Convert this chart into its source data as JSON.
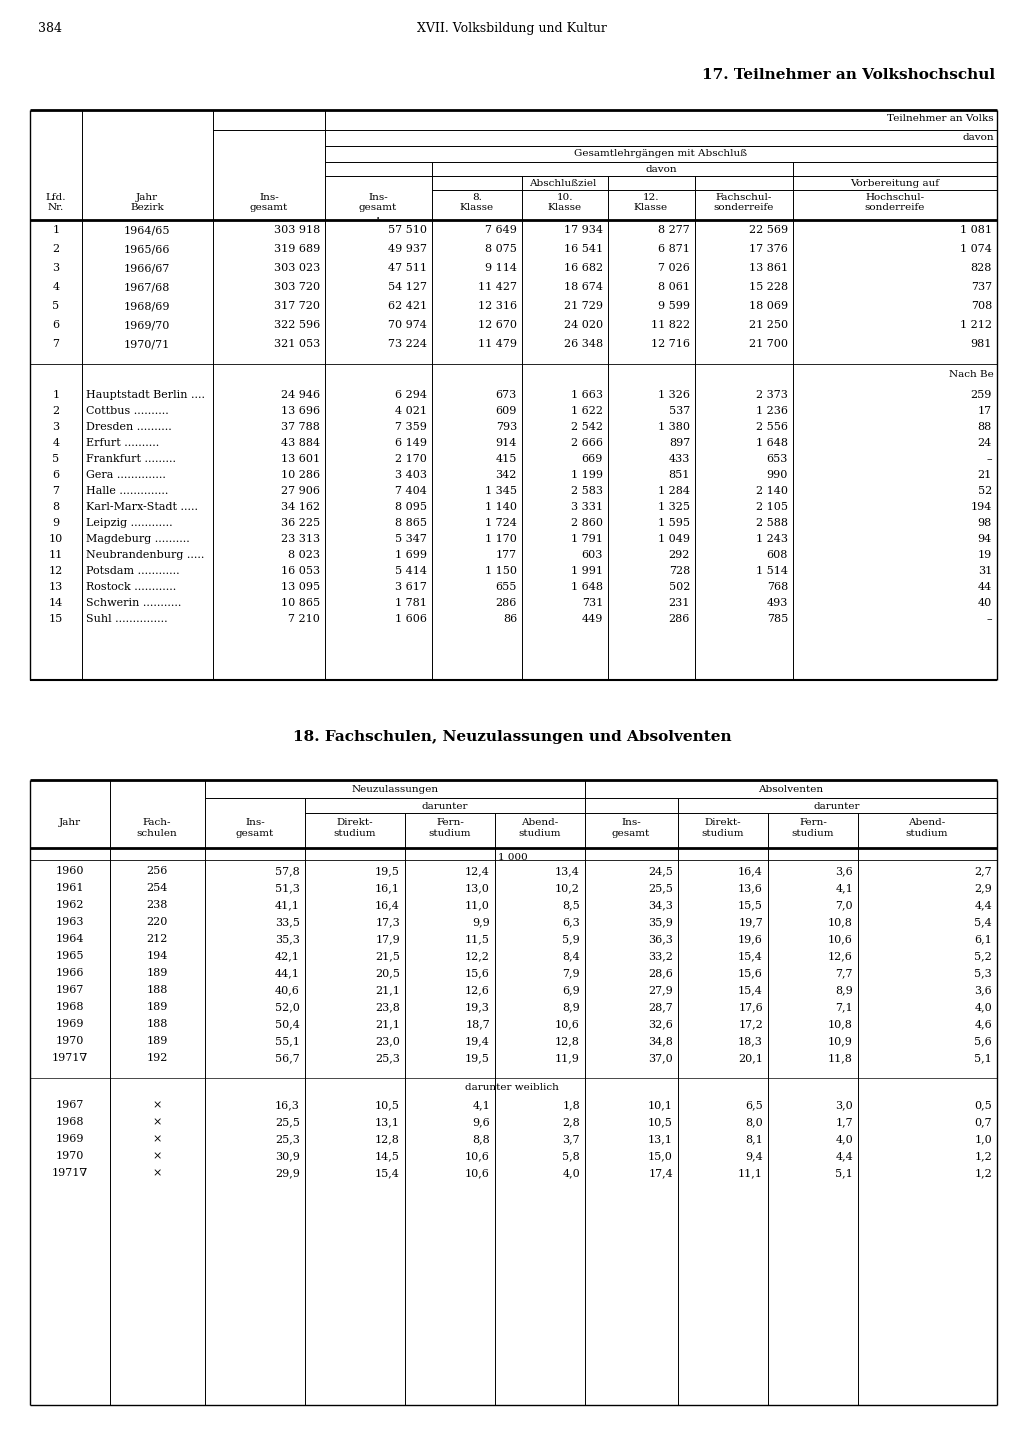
{
  "page_number": "384",
  "page_header": "XVII. Volksbildung und Kultur",
  "title1": "17. Teilnehmer an Volkshochschul",
  "title2": "18. Fachschulen, Neuzulassungen und Absolventen",
  "bg_color": "#ffffff",
  "text_color": "#000000",
  "years_data": [
    [
      "1",
      "1964/65",
      "303 918",
      "57 510",
      "7 649",
      "17 934",
      "8 277",
      "22 569",
      "1 081"
    ],
    [
      "2",
      "1965/66",
      "319 689",
      "49 937",
      "8 075",
      "16 541",
      "6 871",
      "17 376",
      "1 074"
    ],
    [
      "3",
      "1966/67",
      "303 023",
      "47 511",
      "9 114",
      "16 682",
      "7 026",
      "13 861",
      "828"
    ],
    [
      "4",
      "1967/68",
      "303 720",
      "54 127",
      "11 427",
      "18 674",
      "8 061",
      "15 228",
      "737"
    ],
    [
      "5",
      "1968/69",
      "317 720",
      "62 421",
      "12 316",
      "21 729",
      "9 599",
      "18 069",
      "708"
    ],
    [
      "6",
      "1969/70",
      "322 596",
      "70 974",
      "12 670",
      "24 020",
      "11 822",
      "21 250",
      "1 212"
    ],
    [
      "7",
      "1970/71",
      "321 053",
      "73 224",
      "11 479",
      "26 348",
      "12 716",
      "21 700",
      "981"
    ]
  ],
  "bezirke_data": [
    [
      "1",
      "Hauptstadt Berlin ....",
      "24 946",
      "6 294",
      "673",
      "1 663",
      "1 326",
      "2 373",
      "259"
    ],
    [
      "2",
      "Cottbus ..........",
      "13 696",
      "4 021",
      "609",
      "1 622",
      "537",
      "1 236",
      "17"
    ],
    [
      "3",
      "Dresden ..........",
      "37 788",
      "7 359",
      "793",
      "2 542",
      "1 380",
      "2 556",
      "88"
    ],
    [
      "4",
      "Erfurt ..........",
      "43 884",
      "6 149",
      "914",
      "2 666",
      "897",
      "1 648",
      "24"
    ],
    [
      "5",
      "Frankfurt .........",
      "13 601",
      "2 170",
      "415",
      "669",
      "433",
      "653",
      "–"
    ],
    [
      "6",
      "Gera ..............",
      "10 286",
      "3 403",
      "342",
      "1 199",
      "851",
      "990",
      "21"
    ],
    [
      "7",
      "Halle ..............",
      "27 906",
      "7 404",
      "1 345",
      "2 583",
      "1 284",
      "2 140",
      "52"
    ],
    [
      "8",
      "Karl-Marx-Stadt .....",
      "34 162",
      "8 095",
      "1 140",
      "3 331",
      "1 325",
      "2 105",
      "194"
    ],
    [
      "9",
      "Leipzig ............",
      "36 225",
      "8 865",
      "1 724",
      "2 860",
      "1 595",
      "2 588",
      "98"
    ],
    [
      "10",
      "Magdeburg ..........",
      "23 313",
      "5 347",
      "1 170",
      "1 791",
      "1 049",
      "1 243",
      "94"
    ],
    [
      "11",
      "Neubrandenburg .....",
      "8 023",
      "1 699",
      "177",
      "603",
      "292",
      "608",
      "19"
    ],
    [
      "12",
      "Potsdam ............",
      "16 053",
      "5 414",
      "1 150",
      "1 991",
      "728",
      "1 514",
      "31"
    ],
    [
      "13",
      "Rostock ............",
      "13 095",
      "3 617",
      "655",
      "1 648",
      "502",
      "768",
      "44"
    ],
    [
      "14",
      "Schwerin ...........",
      "10 865",
      "1 781",
      "286",
      "731",
      "231",
      "493",
      "40"
    ],
    [
      "15",
      "Suhl ...............",
      "7 210",
      "1 606",
      "86",
      "449",
      "286",
      "785",
      "–"
    ]
  ],
  "t2_data": [
    [
      "1960",
      "256",
      "57,8",
      "19,5",
      "12,4",
      "13,4",
      "24,5",
      "16,4",
      "3,6",
      "2,7"
    ],
    [
      "1961",
      "254",
      "51,3",
      "16,1",
      "13,0",
      "10,2",
      "25,5",
      "13,6",
      "4,1",
      "2,9"
    ],
    [
      "1962",
      "238",
      "41,1",
      "16,4",
      "11,0",
      "8,5",
      "34,3",
      "15,5",
      "7,0",
      "4,4"
    ],
    [
      "1963",
      "220",
      "33,5",
      "17,3",
      "9,9",
      "6,3",
      "35,9",
      "19,7",
      "10,8",
      "5,4"
    ],
    [
      "1964",
      "212",
      "35,3",
      "17,9",
      "11,5",
      "5,9",
      "36,3",
      "19,6",
      "10,6",
      "6,1"
    ],
    [
      "1965",
      "194",
      "42,1",
      "21,5",
      "12,2",
      "8,4",
      "33,2",
      "15,4",
      "12,6",
      "5,2"
    ],
    [
      "1966",
      "189",
      "44,1",
      "20,5",
      "15,6",
      "7,9",
      "28,6",
      "15,6",
      "7,7",
      "5,3"
    ],
    [
      "1967",
      "188",
      "40,6",
      "21,1",
      "12,6",
      "6,9",
      "27,9",
      "15,4",
      "8,9",
      "3,6"
    ],
    [
      "1968",
      "189",
      "52,0",
      "23,8",
      "19,3",
      "8,9",
      "28,7",
      "17,6",
      "7,1",
      "4,0"
    ],
    [
      "1969",
      "188",
      "50,4",
      "21,1",
      "18,7",
      "10,6",
      "32,6",
      "17,2",
      "10,8",
      "4,6"
    ],
    [
      "1970",
      "189",
      "55,1",
      "23,0",
      "19,4",
      "12,8",
      "34,8",
      "18,3",
      "10,9",
      "5,6"
    ],
    [
      "1971∇",
      "192",
      "56,7",
      "25,3",
      "19,5",
      "11,9",
      "37,0",
      "20,1",
      "11,8",
      "5,1"
    ]
  ],
  "weib_data": [
    [
      "1967",
      "×",
      "16,3",
      "10,5",
      "4,1",
      "1,8",
      "10,1",
      "6,5",
      "3,0",
      "0,5"
    ],
    [
      "1968",
      "×",
      "25,5",
      "13,1",
      "9,6",
      "2,8",
      "10,5",
      "8,0",
      "1,7",
      "0,7"
    ],
    [
      "1969",
      "×",
      "25,3",
      "12,8",
      "8,8",
      "3,7",
      "13,1",
      "8,1",
      "4,0",
      "1,0"
    ],
    [
      "1970",
      "×",
      "30,9",
      "14,5",
      "10,6",
      "5,8",
      "15,0",
      "9,4",
      "4,4",
      "1,2"
    ],
    [
      "1971∇",
      "×",
      "29,9",
      "15,4",
      "10,6",
      "4,0",
      "17,4",
      "11,1",
      "5,1",
      "1,2"
    ]
  ]
}
